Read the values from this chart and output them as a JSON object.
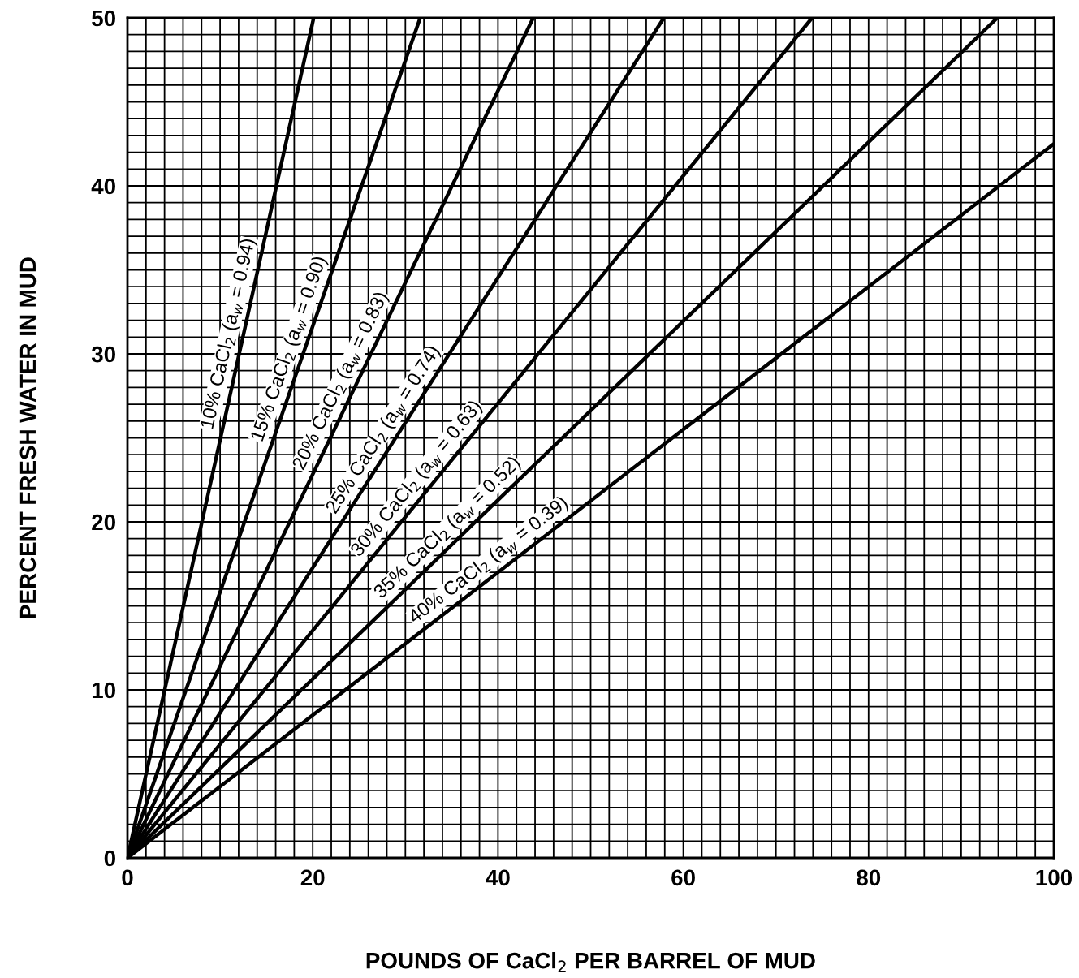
{
  "chart_data": {
    "type": "line",
    "xlabel": "POUNDS OF CaCl$_{2}$ PER BARREL OF MUD",
    "ylabel": "PERCENT FRESH WATER IN MUD",
    "xlim": [
      0,
      100
    ],
    "ylim": [
      0,
      50
    ],
    "grid": true,
    "xticks": [
      0,
      {
        "value": 2,
        "label": null
      },
      {
        "value": 4,
        "label": null
      },
      {
        "value": 6,
        "label": null
      },
      {
        "value": 8,
        "label": null
      },
      {
        "value": 10,
        "label": null
      },
      {
        "value": 12,
        "label": null
      },
      {
        "value": 14,
        "label": null
      },
      {
        "value": 16,
        "label": null
      },
      {
        "value": 18,
        "label": null
      },
      20,
      {
        "value": 22,
        "label": null
      },
      {
        "value": 24,
        "label": null
      },
      {
        "value": 26,
        "label": null
      },
      {
        "value": 28,
        "label": null
      },
      {
        "value": 30,
        "label": null
      },
      {
        "value": 32,
        "label": null
      },
      {
        "value": 34,
        "label": null
      },
      {
        "value": 36,
        "label": null
      },
      {
        "value": 38,
        "label": null
      },
      40,
      {
        "value": 42,
        "label": null
      },
      {
        "value": 44,
        "label": null
      },
      {
        "value": 46,
        "label": null
      },
      {
        "value": 48,
        "label": null
      },
      {
        "value": 50,
        "label": null
      },
      {
        "value": 52,
        "label": null
      },
      {
        "value": 54,
        "label": null
      },
      {
        "value": 56,
        "label": null
      },
      {
        "value": 58,
        "label": null
      },
      60,
      {
        "value": 62,
        "label": null
      },
      {
        "value": 64,
        "label": null
      },
      {
        "value": 66,
        "label": null
      },
      {
        "value": 68,
        "label": null
      },
      {
        "value": 70,
        "label": null
      },
      {
        "value": 72,
        "label": null
      },
      {
        "value": 74,
        "label": null
      },
      {
        "value": 76,
        "label": null
      },
      {
        "value": 78,
        "label": null
      },
      80,
      {
        "value": 82,
        "label": null
      },
      {
        "value": 84,
        "label": null
      },
      {
        "value": 86,
        "label": null
      },
      {
        "value": 88,
        "label": null
      },
      {
        "value": 90,
        "label": null
      },
      {
        "value": 92,
        "label": null
      },
      {
        "value": 94,
        "label": null
      },
      {
        "value": 96,
        "label": null
      },
      {
        "value": 98,
        "label": null
      },
      100
    ],
    "yticks": [
      0,
      {
        "value": 1,
        "label": null
      },
      {
        "value": 2,
        "label": null
      },
      {
        "value": 3,
        "label": null
      },
      {
        "value": 4,
        "label": null
      },
      {
        "value": 5,
        "label": null
      },
      {
        "value": 6,
        "label": null
      },
      {
        "value": 7,
        "label": null
      },
      {
        "value": 8,
        "label": null
      },
      {
        "value": 9,
        "label": null
      },
      10,
      {
        "value": 11,
        "label": null
      },
      {
        "value": 12,
        "label": null
      },
      {
        "value": 13,
        "label": null
      },
      {
        "value": 14,
        "label": null
      },
      {
        "value": 15,
        "label": null
      },
      {
        "value": 16,
        "label": null
      },
      {
        "value": 17,
        "label": null
      },
      {
        "value": 18,
        "label": null
      },
      {
        "value": 19,
        "label": null
      },
      20,
      {
        "value": 21,
        "label": null
      },
      {
        "value": 22,
        "label": null
      },
      {
        "value": 23,
        "label": null
      },
      {
        "value": 24,
        "label": null
      },
      {
        "value": 25,
        "label": null
      },
      {
        "value": 26,
        "label": null
      },
      {
        "value": 27,
        "label": null
      },
      {
        "value": 28,
        "label": null
      },
      {
        "value": 29,
        "label": null
      },
      30,
      {
        "value": 31,
        "label": null
      },
      {
        "value": 32,
        "label": null
      },
      {
        "value": 33,
        "label": null
      },
      {
        "value": 34,
        "label": null
      },
      {
        "value": 35,
        "label": null
      },
      {
        "value": 36,
        "label": null
      },
      {
        "value": 37,
        "label": null
      },
      {
        "value": 38,
        "label": null
      },
      {
        "value": 39,
        "label": null
      },
      40,
      {
        "value": 41,
        "label": null
      },
      {
        "value": 42,
        "label": null
      },
      {
        "value": 43,
        "label": null
      },
      {
        "value": 44,
        "label": null
      },
      {
        "value": 45,
        "label": null
      },
      {
        "value": 46,
        "label": null
      },
      {
        "value": 47,
        "label": null
      },
      {
        "value": 48,
        "label": null
      },
      {
        "value": 49,
        "label": null
      },
      50
    ],
    "series": [
      {
        "color": "#000000",
        "x": [
          0,
          20.1
        ],
        "values": [
          0,
          50
        ]
      },
      {
        "color": "#000000",
        "x": [
          0,
          31.6
        ],
        "values": [
          0,
          50
        ]
      },
      {
        "color": "#000000",
        "x": [
          0,
          43.8
        ],
        "values": [
          0,
          50
        ]
      },
      {
        "color": "#000000",
        "x": [
          0,
          57.9
        ],
        "values": [
          0,
          50
        ]
      },
      {
        "color": "#000000",
        "x": [
          0,
          73.9
        ],
        "values": [
          0,
          50
        ]
      },
      {
        "color": "#000000",
        "x": [
          0,
          93.9
        ],
        "values": [
          0,
          50
        ]
      },
      {
        "color": "#000000",
        "x": [
          0,
          100
        ],
        "values": [
          0,
          42.5
        ]
      }
    ],
    "annotations": [
      {
        "text": "10% CaCl$_{2}$ (a$_{w}$ = 0.94)",
        "x": 12.5,
        "y": 31
      },
      {
        "text": "15% CaCl$_{2}$ (a$_{w}$ = 0.90)",
        "x": 19,
        "y": 30
      },
      {
        "text": "20% CaCl$_{2}$ (a$_{w}$ = 0.83)",
        "x": 24.5,
        "y": 28
      },
      {
        "text": "25% CaCl$_{2}$ (a$_{w}$ = 0.74)",
        "x": 29,
        "y": 25
      },
      {
        "text": "30% CaCl$_{2}$ (a$_{w}$ = 0.63)",
        "x": 32.5,
        "y": 22
      },
      {
        "text": "35% CaCl$_{2}$ (a$_{w}$ = 0.52)",
        "x": 35.7,
        "y": 19
      },
      {
        "text": "40% CaCl$_{2}$ (a$_{w}$ = 0.39)",
        "x": 40,
        "y": 17
      }
    ]
  }
}
